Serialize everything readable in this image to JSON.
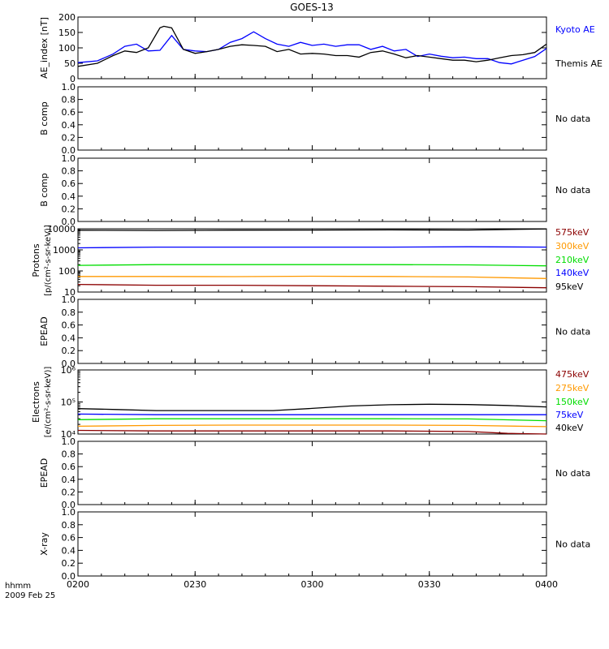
{
  "title": "GOES-13",
  "footer": {
    "line1": "hhmm",
    "line2": "2009 Feb 25"
  },
  "chart_data": [
    {
      "type": "line",
      "panel": "ae",
      "ylabel": "AE_index [nT]",
      "ylim": [
        0,
        200
      ],
      "yticks": [
        "0",
        "50",
        "100",
        "150",
        "200"
      ],
      "xlim": [
        0,
        120
      ],
      "series": [
        {
          "name": "Kyoto AE",
          "color": "#0000ff",
          "x": [
            0,
            5,
            9,
            12,
            15,
            18,
            21,
            24,
            27,
            30,
            33,
            36,
            39,
            42,
            45,
            48,
            51,
            54,
            57,
            60,
            63,
            66,
            69,
            72,
            75,
            78,
            81,
            84,
            87,
            90,
            93,
            96,
            99,
            102,
            105,
            108,
            111,
            114,
            117,
            120
          ],
          "y": [
            52,
            58,
            80,
            105,
            112,
            90,
            92,
            140,
            95,
            90,
            88,
            95,
            118,
            130,
            152,
            130,
            112,
            105,
            118,
            108,
            112,
            105,
            110,
            110,
            95,
            105,
            90,
            95,
            72,
            80,
            73,
            68,
            70,
            65,
            65,
            52,
            48,
            60,
            72,
            98
          ]
        },
        {
          "name": "Themis AE",
          "color": "#000000",
          "x": [
            0,
            5,
            9,
            12,
            15,
            18,
            21,
            22,
            24,
            27,
            30,
            33,
            36,
            39,
            42,
            45,
            48,
            51,
            54,
            57,
            60,
            63,
            66,
            69,
            72,
            75,
            78,
            81,
            84,
            87,
            90,
            93,
            96,
            99,
            102,
            105,
            108,
            111,
            114,
            117,
            120
          ],
          "y": [
            40,
            50,
            75,
            90,
            85,
            100,
            165,
            170,
            165,
            95,
            82,
            88,
            95,
            105,
            110,
            108,
            105,
            88,
            95,
            80,
            82,
            80,
            75,
            75,
            70,
            85,
            90,
            80,
            68,
            75,
            70,
            65,
            60,
            60,
            55,
            60,
            68,
            75,
            78,
            85,
            112
          ]
        }
      ]
    },
    {
      "type": "line",
      "panel": "b1",
      "ylabel": "B comp",
      "ylim": [
        0,
        1
      ],
      "yticks": [
        "0.0",
        "0.2",
        "0.4",
        "0.6",
        "0.8",
        "1.0"
      ],
      "note": "No data",
      "series": []
    },
    {
      "type": "line",
      "panel": "b2",
      "ylabel": "B comp",
      "ylim": [
        0,
        1
      ],
      "yticks": [
        "0.0",
        "0.2",
        "0.4",
        "0.6",
        "0.8",
        "1.0"
      ],
      "note": "No data",
      "series": []
    },
    {
      "type": "line",
      "panel": "protons",
      "log": true,
      "ylabel": "Protons",
      "ylabel2": "[p/(cm²-s-sr-keV)]",
      "ylim": [
        10,
        10000
      ],
      "yticks": [
        "10",
        "100",
        "1000",
        "10000"
      ],
      "xlim": [
        0,
        120
      ],
      "series": [
        {
          "name": "575keV",
          "color": "#8b0000",
          "x": [
            0,
            20,
            40,
            60,
            80,
            100,
            120
          ],
          "y": [
            23,
            21,
            21,
            20,
            19,
            18,
            16
          ]
        },
        {
          "name": "300keV",
          "color": "#ff9900",
          "x": [
            0,
            20,
            40,
            60,
            80,
            100,
            120
          ],
          "y": [
            55,
            55,
            54,
            56,
            55,
            52,
            44
          ]
        },
        {
          "name": "210keV",
          "color": "#00dd00",
          "x": [
            0,
            20,
            40,
            60,
            80,
            100,
            120
          ],
          "y": [
            185,
            200,
            200,
            200,
            200,
            195,
            175
          ]
        },
        {
          "name": "140keV",
          "color": "#0000ff",
          "x": [
            0,
            20,
            40,
            60,
            80,
            100,
            120
          ],
          "y": [
            1250,
            1350,
            1350,
            1350,
            1350,
            1400,
            1350
          ]
        },
        {
          "name": "95keV",
          "color": "#000000",
          "x": [
            0,
            20,
            40,
            60,
            80,
            100,
            120
          ],
          "y": [
            8500,
            8300,
            8600,
            8700,
            8800,
            8700,
            9800
          ]
        }
      ]
    },
    {
      "type": "line",
      "panel": "epead1",
      "ylabel": "EPEAD",
      "ylim": [
        0,
        1
      ],
      "yticks": [
        "0.0",
        "0.2",
        "0.4",
        "0.6",
        "0.8",
        "1.0"
      ],
      "note": "No data",
      "series": []
    },
    {
      "type": "line",
      "panel": "electrons",
      "log": true,
      "ylabel": "Electrons",
      "ylabel2": "[e/(cm²-s-sr-keV)]",
      "ylim": [
        10000,
        1000000
      ],
      "yticks": [
        "10⁴",
        "10⁵",
        "10⁶"
      ],
      "xlim": [
        0,
        120
      ],
      "series": [
        {
          "name": "475keV",
          "color": "#8b0000",
          "x": [
            0,
            20,
            40,
            60,
            80,
            100,
            110,
            120
          ],
          "y": [
            13000,
            12500,
            12500,
            12500,
            12500,
            12000,
            10500,
            10000
          ]
        },
        {
          "name": "275keV",
          "color": "#ff9900",
          "x": [
            0,
            20,
            40,
            60,
            80,
            100,
            120
          ],
          "y": [
            17500,
            18500,
            19000,
            19000,
            19000,
            18500,
            17000
          ]
        },
        {
          "name": "150keV",
          "color": "#00dd00",
          "x": [
            0,
            20,
            40,
            60,
            80,
            100,
            120
          ],
          "y": [
            28000,
            30000,
            30000,
            30000,
            30000,
            29500,
            26000
          ]
        },
        {
          "name": "75keV",
          "color": "#0000ff",
          "x": [
            0,
            20,
            40,
            60,
            80,
            100,
            120
          ],
          "y": [
            42000,
            40000,
            40000,
            40000,
            40000,
            40000,
            40000
          ]
        },
        {
          "name": "40keV",
          "color": "#000000",
          "x": [
            0,
            10,
            20,
            30,
            50,
            60,
            70,
            80,
            90,
            100,
            110,
            120
          ],
          "y": [
            62000,
            58000,
            54000,
            54000,
            54000,
            63000,
            75000,
            82000,
            85000,
            83000,
            78000,
            70000
          ]
        }
      ]
    },
    {
      "type": "line",
      "panel": "epead2",
      "ylabel": "EPEAD",
      "ylim": [
        0,
        1
      ],
      "yticks": [
        "0.0",
        "0.2",
        "0.4",
        "0.6",
        "0.8",
        "1.0"
      ],
      "note": "No data",
      "series": []
    },
    {
      "type": "line",
      "panel": "xray",
      "ylabel": "X-ray",
      "ylim": [
        0,
        1
      ],
      "yticks": [
        "0.0",
        "0.2",
        "0.4",
        "0.6",
        "0.8",
        "1.0"
      ],
      "note": "No data",
      "series": [],
      "xlim": [
        0,
        120
      ],
      "xticks": [
        "0200",
        "0230",
        "0300",
        "0330",
        "0400"
      ]
    }
  ]
}
